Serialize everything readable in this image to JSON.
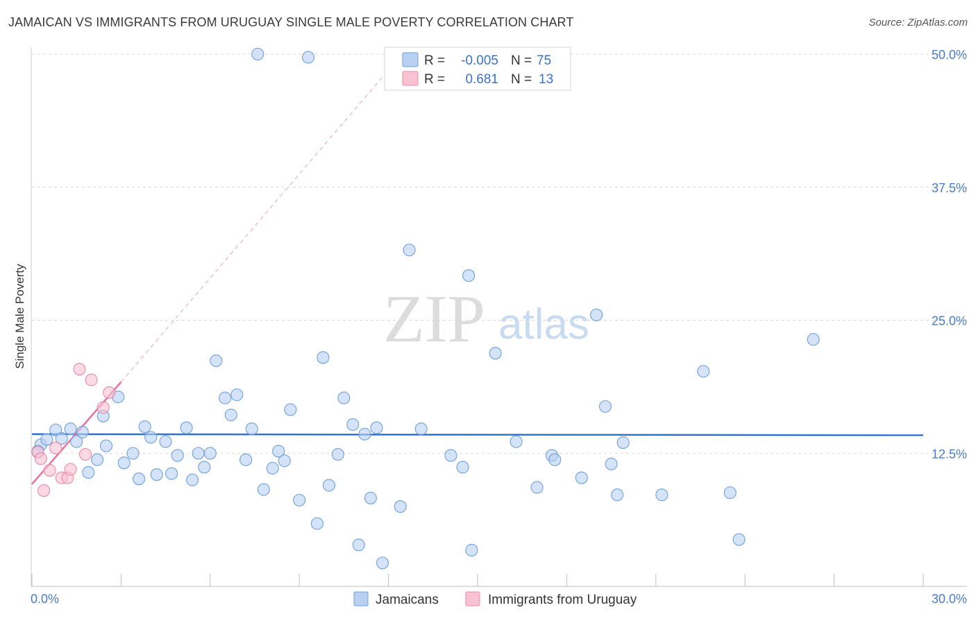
{
  "title": "JAMAICAN VS IMMIGRANTS FROM URUGUAY SINGLE MALE POVERTY CORRELATION CHART",
  "source": "Source: ZipAtlas.com",
  "watermark": {
    "zip": "ZIP",
    "atlas": "atlas"
  },
  "colors": {
    "blue_fill": "#b8d1f2",
    "blue_stroke": "#6f9fdb",
    "blue_line": "#2f74d0",
    "pink_fill": "#f8c2d2",
    "pink_stroke": "#e88aa8",
    "pink_line": "#e8709a",
    "grid": "#d8d8d8",
    "tick_label": "#4a7cc4"
  },
  "legend": {
    "rows": [
      {
        "r_label": "R =",
        "r_value": "-0.005",
        "n_label": "N =",
        "n_value": "75"
      },
      {
        "r_label": "R =",
        "r_value": "0.681",
        "n_label": "N =",
        "n_value": "13"
      }
    ]
  },
  "bottom_legend": [
    "Jamaicans",
    "Immigrants from Uruguay"
  ],
  "chart_data": {
    "type": "scatter",
    "title": "JAMAICAN VS IMMIGRANTS FROM URUGUAY SINGLE MALE POVERTY CORRELATION CHART",
    "xlabel": "",
    "ylabel": "Single Male Poverty",
    "xlim": [
      0,
      30
    ],
    "ylim": [
      0,
      50
    ],
    "x_tick_labels": [
      "0.0%",
      "30.0%"
    ],
    "y_ticks": [
      12.5,
      25.0,
      37.5,
      50.0
    ],
    "y_tick_labels": [
      "12.5%",
      "25.0%",
      "37.5%",
      "50.0%"
    ],
    "grid": true,
    "legend_position": "top-center",
    "series": [
      {
        "name": "Jamaicans",
        "trend": {
          "x": [
            0,
            30
          ],
          "y": [
            14.3,
            14.2
          ]
        },
        "points": [
          [
            0.3,
            13.3
          ],
          [
            0.5,
            13.8
          ],
          [
            0.8,
            14.7
          ],
          [
            1.0,
            13.9
          ],
          [
            1.3,
            14.8
          ],
          [
            1.5,
            13.6
          ],
          [
            1.7,
            14.5
          ],
          [
            1.9,
            10.7
          ],
          [
            2.2,
            11.9
          ],
          [
            2.4,
            16.0
          ],
          [
            2.5,
            13.2
          ],
          [
            2.9,
            17.8
          ],
          [
            3.1,
            11.6
          ],
          [
            3.4,
            12.5
          ],
          [
            3.6,
            10.1
          ],
          [
            3.8,
            15.0
          ],
          [
            4.0,
            14.0
          ],
          [
            4.2,
            10.5
          ],
          [
            4.5,
            13.6
          ],
          [
            4.7,
            10.6
          ],
          [
            4.9,
            12.3
          ],
          [
            5.2,
            14.9
          ],
          [
            5.4,
            10.0
          ],
          [
            5.6,
            12.5
          ],
          [
            5.8,
            11.2
          ],
          [
            6.0,
            12.5
          ],
          [
            6.2,
            21.2
          ],
          [
            6.5,
            17.7
          ],
          [
            6.7,
            16.1
          ],
          [
            6.9,
            18.0
          ],
          [
            7.2,
            11.9
          ],
          [
            7.4,
            14.8
          ],
          [
            7.6,
            50.0
          ],
          [
            7.8,
            9.1
          ],
          [
            8.1,
            11.1
          ],
          [
            8.3,
            12.7
          ],
          [
            8.5,
            11.8
          ],
          [
            8.7,
            16.6
          ],
          [
            9.0,
            8.1
          ],
          [
            9.3,
            49.7
          ],
          [
            9.6,
            5.9
          ],
          [
            9.8,
            21.5
          ],
          [
            10.0,
            9.5
          ],
          [
            10.3,
            12.4
          ],
          [
            10.5,
            17.7
          ],
          [
            10.8,
            15.2
          ],
          [
            11.0,
            3.9
          ],
          [
            11.2,
            14.3
          ],
          [
            11.4,
            8.3
          ],
          [
            11.6,
            14.9
          ],
          [
            11.8,
            2.2
          ],
          [
            12.4,
            7.5
          ],
          [
            12.7,
            31.6
          ],
          [
            13.1,
            14.8
          ],
          [
            14.1,
            12.3
          ],
          [
            14.5,
            11.2
          ],
          [
            14.7,
            29.2
          ],
          [
            14.8,
            3.4
          ],
          [
            15.6,
            21.9
          ],
          [
            16.3,
            13.6
          ],
          [
            17.0,
            9.3
          ],
          [
            17.5,
            12.3
          ],
          [
            17.6,
            11.9
          ],
          [
            18.5,
            10.2
          ],
          [
            19.0,
            25.5
          ],
          [
            19.3,
            16.9
          ],
          [
            19.5,
            11.5
          ],
          [
            19.7,
            8.6
          ],
          [
            19.9,
            13.5
          ],
          [
            21.2,
            8.6
          ],
          [
            22.6,
            20.2
          ],
          [
            23.5,
            8.8
          ],
          [
            23.8,
            4.4
          ],
          [
            26.3,
            23.2
          ],
          [
            0.2,
            12.7
          ]
        ]
      },
      {
        "name": "Immigrants from Uruguay",
        "trend": {
          "x": [
            0,
            3.0
          ],
          "y": [
            9.6,
            19.2
          ]
        },
        "trend_extension": {
          "x": [
            3.0,
            12.0
          ],
          "y": [
            19.2,
            48.5
          ]
        },
        "points": [
          [
            0.2,
            12.6
          ],
          [
            0.3,
            12.0
          ],
          [
            0.4,
            9.0
          ],
          [
            0.6,
            10.9
          ],
          [
            0.8,
            13.0
          ],
          [
            1.0,
            10.2
          ],
          [
            1.2,
            10.2
          ],
          [
            1.3,
            11.0
          ],
          [
            1.6,
            20.4
          ],
          [
            1.8,
            12.4
          ],
          [
            2.0,
            19.4
          ],
          [
            2.4,
            16.8
          ],
          [
            2.6,
            18.2
          ]
        ]
      }
    ]
  }
}
